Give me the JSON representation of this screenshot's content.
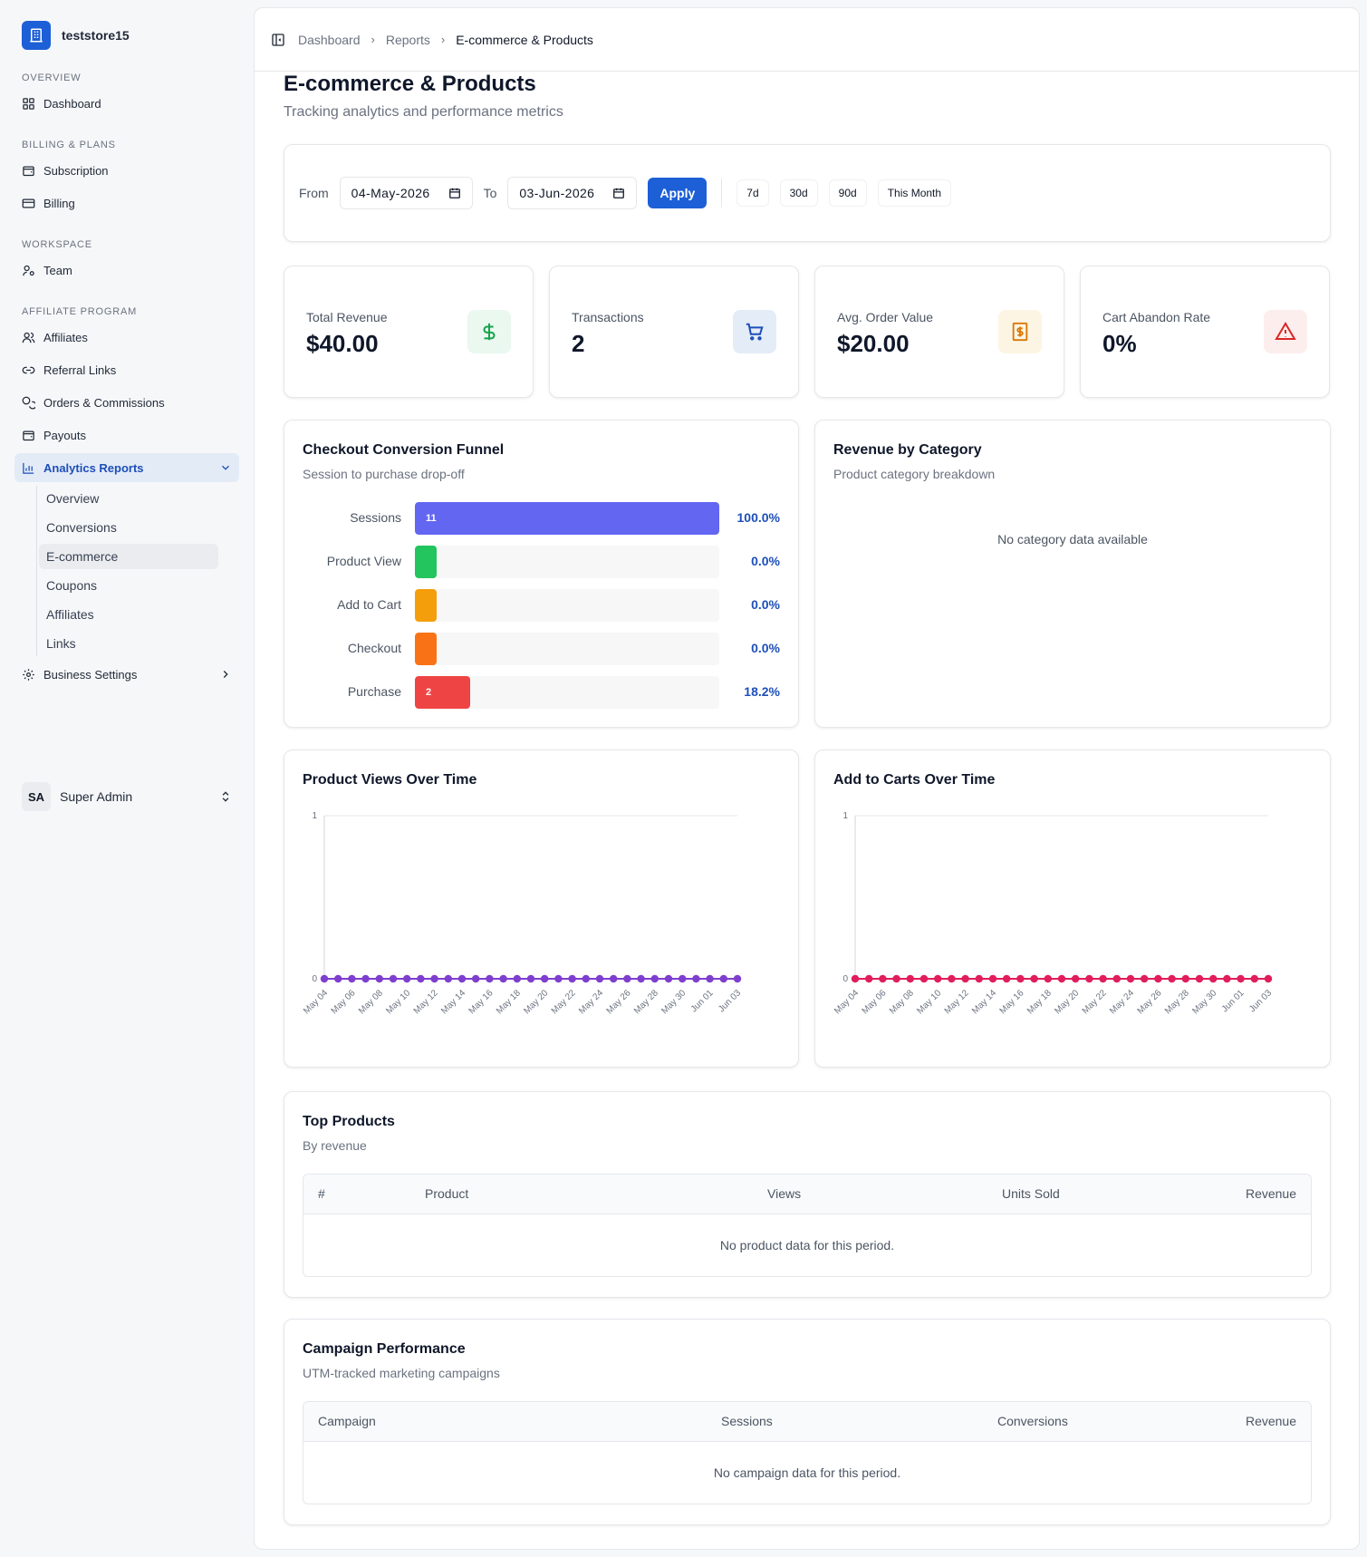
{
  "brand": {
    "name": "teststore15"
  },
  "sidebar": {
    "sections": {
      "overview": "OVERVIEW",
      "billing": "BILLING & PLANS",
      "workspace": "WORKSPACE",
      "affiliate": "AFFILIATE PROGRAM"
    },
    "items": {
      "dashboard": "Dashboard",
      "subscription": "Subscription",
      "billing": "Billing",
      "team": "Team",
      "affiliates": "Affiliates",
      "referral_links": "Referral Links",
      "orders": "Orders & Commissions",
      "payouts": "Payouts",
      "analytics": "Analytics Reports",
      "business_settings": "Business Settings"
    },
    "sub_items": [
      "Overview",
      "Conversions",
      "E-commerce",
      "Coupons",
      "Affiliates",
      "Links"
    ],
    "user": {
      "initials": "SA",
      "name": "Super Admin"
    }
  },
  "breadcrumb": [
    "Dashboard",
    "Reports",
    "E-commerce & Products"
  ],
  "page": {
    "title": "E-commerce & Products",
    "subtitle": "Tracking analytics and performance metrics"
  },
  "filters": {
    "from_label": "From",
    "from_value": "04-May-2026",
    "to_label": "To",
    "to_value": "03-Jun-2026",
    "apply": "Apply",
    "quick": [
      "7d",
      "30d",
      "90d",
      "This Month"
    ]
  },
  "stats": [
    {
      "label": "Total Revenue",
      "value": "$40.00",
      "icon": "dollar-icon",
      "color": "#16a34a",
      "bg": "#eaf8ef"
    },
    {
      "label": "Transactions",
      "value": "2",
      "icon": "cart-icon",
      "color": "#1d4fb8",
      "bg": "#e4ecf8"
    },
    {
      "label": "Avg. Order Value",
      "value": "$20.00",
      "icon": "receipt-icon",
      "color": "#d97706",
      "bg": "#fdf5e4"
    },
    {
      "label": "Cart Abandon Rate",
      "value": "0%",
      "icon": "warning-icon",
      "color": "#dc2626",
      "bg": "#fdeeee"
    }
  ],
  "funnel": {
    "title": "Checkout Conversion Funnel",
    "subtitle": "Session to purchase drop-off",
    "rows": [
      {
        "label": "Sessions",
        "count": "11",
        "pct": "100.0%",
        "fill": 1.0,
        "color": "#6366f1"
      },
      {
        "label": "Product View",
        "count": "",
        "pct": "0.0%",
        "fill": 0.0,
        "color": "#22c55e"
      },
      {
        "label": "Add to Cart",
        "count": "",
        "pct": "0.0%",
        "fill": 0.0,
        "color": "#f59e0b"
      },
      {
        "label": "Checkout",
        "count": "",
        "pct": "0.0%",
        "fill": 0.0,
        "color": "#f97316"
      },
      {
        "label": "Purchase",
        "count": "2",
        "pct": "18.2%",
        "fill": 0.182,
        "color": "#ef4444"
      }
    ]
  },
  "category": {
    "title": "Revenue by Category",
    "subtitle": "Product category breakdown",
    "empty": "No category data available"
  },
  "chart_data": [
    {
      "type": "line",
      "title": "Product Views Over Time",
      "x": [
        "May 04",
        "May 05",
        "May 06",
        "May 07",
        "May 08",
        "May 09",
        "May 10",
        "May 11",
        "May 12",
        "May 13",
        "May 14",
        "May 15",
        "May 16",
        "May 17",
        "May 18",
        "May 19",
        "May 20",
        "May 21",
        "May 22",
        "May 23",
        "May 24",
        "May 25",
        "May 26",
        "May 27",
        "May 28",
        "May 29",
        "May 30",
        "May 31",
        "Jun 01",
        "Jun 02",
        "Jun 03"
      ],
      "tick_labels": [
        "May 04",
        "May 06",
        "May 08",
        "May 10",
        "May 12",
        "May 14",
        "May 16",
        "May 18",
        "May 20",
        "May 22",
        "May 24",
        "May 26",
        "May 28",
        "May 30",
        "Jun 01",
        "Jun 03"
      ],
      "series": [
        {
          "values": [
            0,
            0,
            0,
            0,
            0,
            0,
            0,
            0,
            0,
            0,
            0,
            0,
            0,
            0,
            0,
            0,
            0,
            0,
            0,
            0,
            0,
            0,
            0,
            0,
            0,
            0,
            0,
            0,
            0,
            0,
            0
          ],
          "color": "#7e3fce"
        }
      ],
      "y_ticks": [
        "0",
        "1"
      ],
      "ylim": [
        0,
        1
      ],
      "grid": false
    },
    {
      "type": "line",
      "title": "Add to Carts Over Time",
      "x": [
        "May 04",
        "May 05",
        "May 06",
        "May 07",
        "May 08",
        "May 09",
        "May 10",
        "May 11",
        "May 12",
        "May 13",
        "May 14",
        "May 15",
        "May 16",
        "May 17",
        "May 18",
        "May 19",
        "May 20",
        "May 21",
        "May 22",
        "May 23",
        "May 24",
        "May 25",
        "May 26",
        "May 27",
        "May 28",
        "May 29",
        "May 30",
        "May 31",
        "Jun 01",
        "Jun 02",
        "Jun 03"
      ],
      "tick_labels": [
        "May 04",
        "May 06",
        "May 08",
        "May 10",
        "May 12",
        "May 14",
        "May 16",
        "May 18",
        "May 20",
        "May 22",
        "May 24",
        "May 26",
        "May 28",
        "May 30",
        "Jun 01",
        "Jun 03"
      ],
      "series": [
        {
          "values": [
            0,
            0,
            0,
            0,
            0,
            0,
            0,
            0,
            0,
            0,
            0,
            0,
            0,
            0,
            0,
            0,
            0,
            0,
            0,
            0,
            0,
            0,
            0,
            0,
            0,
            0,
            0,
            0,
            0,
            0,
            0
          ],
          "color": "#e11d5c"
        }
      ],
      "y_ticks": [
        "0",
        "1"
      ],
      "ylim": [
        0,
        1
      ],
      "grid": false
    }
  ],
  "top_products": {
    "title": "Top Products",
    "subtitle": "By revenue",
    "columns": [
      "#",
      "Product",
      "Views",
      "Units Sold",
      "Revenue"
    ],
    "empty": "No product data for this period."
  },
  "campaigns": {
    "title": "Campaign Performance",
    "subtitle": "UTM-tracked marketing campaigns",
    "columns": [
      "Campaign",
      "Sessions",
      "Conversions",
      "Revenue"
    ],
    "empty": "No campaign data for this period."
  }
}
